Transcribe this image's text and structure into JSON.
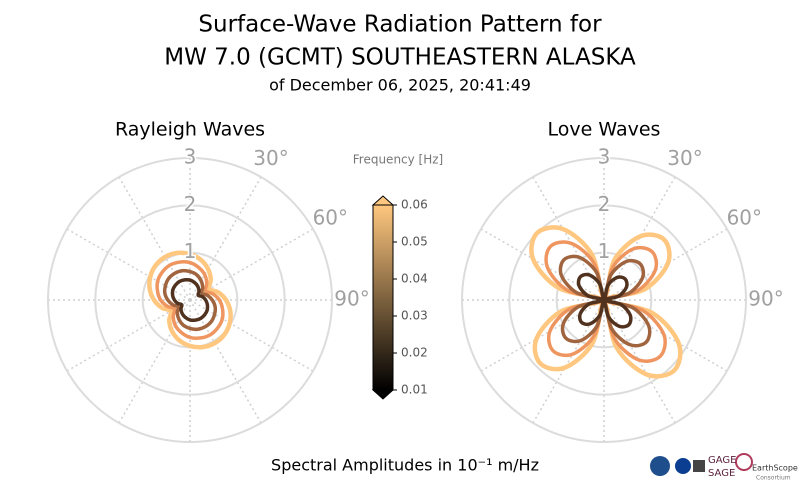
{
  "title_lines": [
    "Surface-Wave Radiation Pattern for",
    "MW 7.0 (GCMT) SOUTHEASTERN ALASKA"
  ],
  "subtitle": "of December 06, 2025, 20:41:49",
  "xlabel": "Spectral Amplitudes in 10⁻¹ m/Hz",
  "logos": [
    "GAGE",
    "SAGE",
    "EarthScope",
    "Consortium"
  ],
  "colorbar": {
    "label": "Frequency [Hz]",
    "lim": [
      0.01,
      0.06
    ],
    "ticks": [
      0.01,
      0.02,
      0.03,
      0.04,
      0.05,
      0.06
    ],
    "colors": [
      "#000000",
      "#ffc77f"
    ]
  },
  "chart_data": [
    {
      "type": "polar",
      "title": "Rayleigh Waves",
      "theta": [
        0,
        15,
        30,
        45,
        60,
        75,
        90,
        105,
        120,
        135,
        150,
        165,
        180,
        195,
        210,
        225,
        240,
        255,
        270,
        285,
        300,
        315,
        330,
        345
      ],
      "rlim": [
        0,
        3
      ],
      "rticks": [
        1,
        2,
        3
      ],
      "theta_grid": [
        0,
        30,
        60,
        90,
        120,
        150,
        180,
        210,
        240,
        270,
        300,
        330
      ],
      "thetaticks": [
        {
          "value": 30,
          "label": "30°"
        },
        {
          "value": 60,
          "label": "60°"
        },
        {
          "value": 90,
          "label": "90°"
        }
      ],
      "series": [
        {
          "color": "#ffc77f",
          "values": [
            0.97,
            0.88,
            0.76,
            0.62,
            0.47,
            0.62,
            0.76,
            0.88,
            0.97,
            1.03,
            1.05,
            1.03,
            0.97,
            0.88,
            0.76,
            0.62,
            0.47,
            0.62,
            0.76,
            0.88,
            0.97,
            1.03,
            1.05,
            1.03
          ]
        },
        {
          "color": "#ef955f",
          "values": [
            0.79,
            0.71,
            0.62,
            0.5,
            0.38,
            0.5,
            0.62,
            0.71,
            0.79,
            0.83,
            0.85,
            0.83,
            0.79,
            0.71,
            0.62,
            0.5,
            0.38,
            0.5,
            0.62,
            0.71,
            0.79,
            0.83,
            0.85,
            0.83
          ]
        },
        {
          "color": "#a0643f",
          "values": [
            0.6,
            0.55,
            0.47,
            0.38,
            0.29,
            0.38,
            0.47,
            0.55,
            0.6,
            0.64,
            0.65,
            0.64,
            0.6,
            0.55,
            0.47,
            0.38,
            0.29,
            0.38,
            0.47,
            0.55,
            0.6,
            0.64,
            0.65,
            0.64
          ]
        },
        {
          "color": "#50321f",
          "values": [
            0.42,
            0.38,
            0.33,
            0.27,
            0.2,
            0.27,
            0.33,
            0.38,
            0.42,
            0.44,
            0.45,
            0.44,
            0.42,
            0.38,
            0.33,
            0.27,
            0.2,
            0.27,
            0.33,
            0.38,
            0.42,
            0.44,
            0.45,
            0.44
          ]
        }
      ]
    },
    {
      "type": "polar",
      "title": "Love Waves",
      "theta": [
        0,
        15,
        30,
        45,
        60,
        75,
        90,
        105,
        120,
        135,
        150,
        165,
        180,
        195,
        210,
        225,
        240,
        255,
        270,
        285,
        300,
        315,
        330,
        345
      ],
      "rlim": [
        0,
        3
      ],
      "rticks": [
        1,
        2,
        3
      ],
      "theta_grid": [
        0,
        30,
        60,
        90,
        120,
        150,
        180,
        210,
        240,
        270,
        300,
        330
      ],
      "thetaticks": [
        {
          "value": 30,
          "label": "30°"
        },
        {
          "value": 60,
          "label": "60°"
        },
        {
          "value": 90,
          "label": "90°"
        }
      ],
      "series": [
        {
          "color": "#ffc77f",
          "values": [
            0.05,
            0.9,
            1.56,
            1.8,
            1.56,
            0.9,
            0.05,
            1.05,
            1.82,
            2.1,
            1.82,
            1.05,
            0.05,
            0.95,
            1.65,
            1.9,
            1.65,
            0.95,
            0.05,
            1.0,
            1.73,
            2.0,
            1.73,
            1.0
          ]
        },
        {
          "color": "#ef955f",
          "values": [
            0.04,
            0.72,
            1.25,
            1.44,
            1.25,
            0.72,
            0.04,
            0.84,
            1.46,
            1.68,
            1.46,
            0.84,
            0.04,
            0.76,
            1.32,
            1.52,
            1.32,
            0.76,
            0.04,
            0.8,
            1.38,
            1.6,
            1.38,
            0.8
          ]
        },
        {
          "color": "#a0643f",
          "values": [
            0.03,
            0.54,
            0.94,
            1.08,
            0.94,
            0.54,
            0.03,
            0.63,
            1.09,
            1.26,
            1.09,
            0.63,
            0.03,
            0.57,
            0.99,
            1.14,
            0.99,
            0.57,
            0.03,
            0.6,
            1.04,
            1.2,
            1.04,
            0.6
          ]
        },
        {
          "color": "#50321f",
          "values": [
            0.02,
            0.32,
            0.55,
            0.63,
            0.55,
            0.32,
            0.02,
            0.37,
            0.64,
            0.74,
            0.64,
            0.37,
            0.02,
            0.33,
            0.58,
            0.67,
            0.58,
            0.33,
            0.02,
            0.35,
            0.61,
            0.7,
            0.61,
            0.35
          ]
        }
      ]
    }
  ]
}
